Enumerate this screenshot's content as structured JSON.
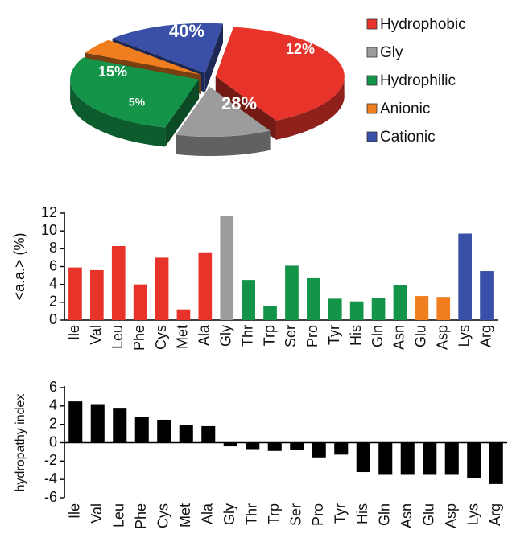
{
  "chart_data": [
    {
      "type": "pie",
      "style": "3d-exploded",
      "labels": [
        "Hydrophobic",
        "Gly",
        "Hydrophilic",
        "Anionic",
        "Cationic"
      ],
      "values": [
        40,
        12,
        28,
        5,
        15
      ],
      "value_labels": [
        "40%",
        "12%",
        "28%",
        "5%",
        "15%"
      ],
      "colors": [
        "#e8332a",
        "#9c9c9c",
        "#139448",
        "#f07e1f",
        "#3a50a8"
      ],
      "legend_position": "right",
      "title": ""
    },
    {
      "type": "bar",
      "categories": [
        "Ile",
        "Val",
        "Leu",
        "Phe",
        "Cys",
        "Met",
        "Ala",
        "Gly",
        "Thr",
        "Trp",
        "Ser",
        "Pro",
        "Tyr",
        "His",
        "Gln",
        "Asn",
        "Glu",
        "Asp",
        "Lys",
        "Arg"
      ],
      "values": [
        5.9,
        5.6,
        8.3,
        4.0,
        7.0,
        1.2,
        7.6,
        11.7,
        4.5,
        1.6,
        6.1,
        4.7,
        2.4,
        2.1,
        2.5,
        3.9,
        2.7,
        2.6,
        9.7,
        5.5
      ],
      "groups": [
        "Hydrophobic",
        "Hydrophobic",
        "Hydrophobic",
        "Hydrophobic",
        "Hydrophobic",
        "Hydrophobic",
        "Hydrophobic",
        "Gly",
        "Hydrophilic",
        "Hydrophilic",
        "Hydrophilic",
        "Hydrophilic",
        "Hydrophilic",
        "Hydrophilic",
        "Hydrophilic",
        "Hydrophilic",
        "Anionic",
        "Anionic",
        "Cationic",
        "Cationic"
      ],
      "ylabel": "<a.a.> (%)",
      "xlabel": "",
      "ylim": [
        0,
        12
      ],
      "yticks": [
        "0",
        "2",
        "4",
        "6",
        "8",
        "10",
        "12"
      ],
      "title": ""
    },
    {
      "type": "bar",
      "categories": [
        "Ile",
        "Val",
        "Leu",
        "Phe",
        "Cys",
        "Met",
        "Ala",
        "Gly",
        "Thr",
        "Trp",
        "Ser",
        "Pro",
        "Tyr",
        "His",
        "Gln",
        "Asn",
        "Glu",
        "Asp",
        "Lys",
        "Arg"
      ],
      "values": [
        4.5,
        4.2,
        3.8,
        2.8,
        2.5,
        1.9,
        1.8,
        -0.4,
        -0.7,
        -0.9,
        -0.8,
        -1.6,
        -1.3,
        -3.2,
        -3.5,
        -3.5,
        -3.5,
        -3.5,
        -3.9,
        -4.5
      ],
      "bar_color": "#000000",
      "ylabel": "hydropathy index",
      "xlabel": "",
      "ylim": [
        -6,
        6
      ],
      "yticks": [
        "-6",
        "-4",
        "-2",
        "0",
        "2",
        "4",
        "6"
      ],
      "title": ""
    }
  ]
}
